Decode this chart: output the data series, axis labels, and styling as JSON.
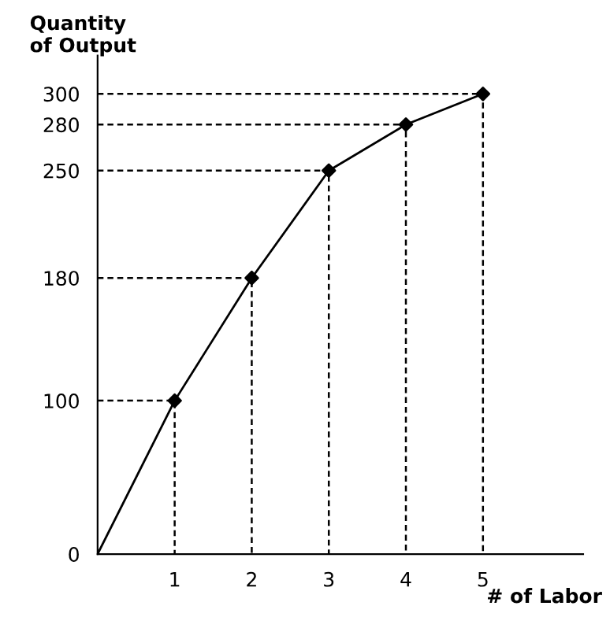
{
  "chart_data": {
    "type": "line",
    "xlabel": "# of Labor",
    "ylabel": "Quantity\nof Output",
    "xlim": [
      0,
      6.3
    ],
    "ylim": [
      0,
      325
    ],
    "xticks": [
      1,
      2,
      3,
      4,
      5
    ],
    "yticks": [
      0,
      100,
      180,
      250,
      280,
      300
    ],
    "grid": false,
    "legend": false,
    "series": [
      {
        "color": "#000000",
        "x": [
          0,
          1,
          2,
          3,
          4,
          5
        ],
        "values": [
          0,
          100,
          180,
          250,
          280,
          300
        ],
        "marker": "none",
        "line_style": "solid"
      },
      {
        "type": "scatter",
        "color": "#000000",
        "x": [
          1,
          2,
          3,
          4,
          5
        ],
        "values": [
          100,
          180,
          250,
          280,
          300
        ],
        "marker": "diamond"
      },
      {
        "type": "line",
        "color": "#000000",
        "x": [
          0,
          1,
          1
        ],
        "values": [
          100,
          100,
          0
        ],
        "marker": "none",
        "line_style": "dashed"
      },
      {
        "type": "line",
        "color": "#000000",
        "x": [
          0,
          2,
          2
        ],
        "values": [
          180,
          180,
          0
        ],
        "marker": "none",
        "line_style": "dashed"
      },
      {
        "type": "line",
        "color": "#000000",
        "x": [
          0,
          3,
          3
        ],
        "values": [
          250,
          250,
          0
        ],
        "marker": "none",
        "line_style": "dashed"
      },
      {
        "type": "line",
        "color": "#000000",
        "x": [
          0,
          4,
          4
        ],
        "values": [
          280,
          280,
          0
        ],
        "marker": "none",
        "line_style": "dashed"
      },
      {
        "type": "line",
        "color": "#000000",
        "x": [
          0,
          5,
          5
        ],
        "values": [
          300,
          300,
          0
        ],
        "marker": "none",
        "line_style": "dashed"
      }
    ]
  }
}
